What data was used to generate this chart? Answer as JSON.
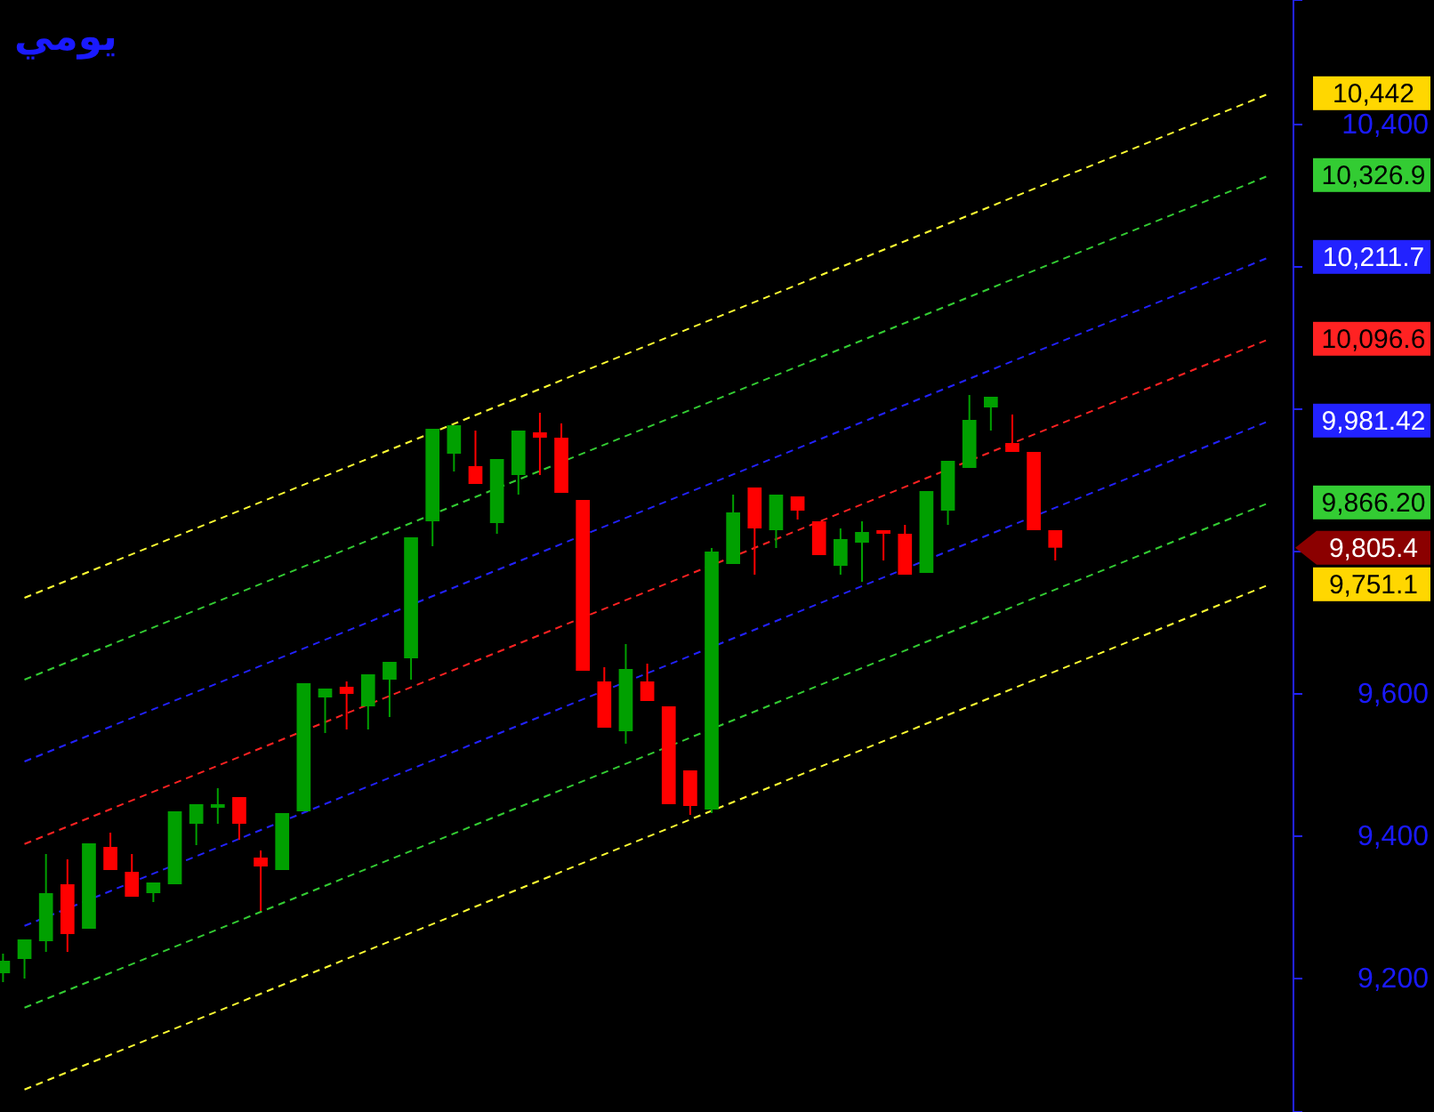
{
  "chart_data": {
    "type": "candlestick",
    "title": "يومي",
    "categories": [
      null,
      null,
      null,
      null,
      null,
      null,
      null,
      null,
      null,
      null,
      null,
      null,
      null,
      null,
      null,
      null,
      null,
      null,
      null,
      null,
      null,
      null,
      null,
      null,
      null,
      null,
      null,
      null,
      null,
      null,
      null,
      null,
      null,
      null,
      null,
      null,
      null,
      null,
      null,
      null,
      null,
      null,
      null,
      null,
      null,
      null,
      null,
      null,
      null,
      null,
      null,
      null,
      null,
      null,
      null,
      null,
      null,
      null,
      null,
      null
    ],
    "ohlc": [
      [
        9207.5,
        9235,
        9195,
        9225
      ],
      [
        9227.5,
        9255,
        9200,
        9255
      ],
      [
        9252.5,
        9375,
        9237.5,
        9320
      ],
      [
        9332.5,
        9367.5,
        9237.5,
        9262.5
      ],
      [
        9270,
        9390,
        9270,
        9390
      ],
      [
        9385,
        9405,
        9352.5,
        9352.5
      ],
      [
        9350,
        9375,
        9315,
        9315
      ],
      [
        9320,
        9335,
        9307.5,
        9335
      ],
      [
        9332.5,
        9435,
        9332.5,
        9435
      ],
      [
        9417.5,
        9445,
        9387.5,
        9445
      ],
      [
        9440,
        9467.5,
        9417.5,
        9445
      ],
      [
        9455,
        9455,
        9395,
        9417.5
      ],
      [
        9370,
        9380,
        9295,
        9357.5
      ],
      [
        9352.5,
        9432.5,
        9352.5,
        9432.5
      ],
      [
        9435,
        9615,
        9435,
        9615
      ],
      [
        9595,
        9607.5,
        9545,
        9607.5
      ],
      [
        9610,
        9617.5,
        9550,
        9600
      ],
      [
        9582.5,
        9627.5,
        9550,
        9627.5
      ],
      [
        9620,
        9645,
        9567.5,
        9645
      ],
      [
        9650,
        9820,
        9620,
        9820
      ],
      [
        9842.5,
        9972.5,
        9807.5,
        9972.5
      ],
      [
        9937.5,
        9977.5,
        9912.5,
        9977.5
      ],
      [
        9920,
        9970,
        9895,
        9895
      ],
      [
        9840,
        9930,
        9825,
        9930
      ],
      [
        9907.5,
        9970,
        9880,
        9970
      ],
      [
        9967.5,
        9995,
        9907.5,
        9960
      ],
      [
        9960,
        9980,
        9882.5,
        9882.5
      ],
      [
        9872.5,
        9872.5,
        9632.5,
        9632.5
      ],
      [
        9617.5,
        9637.5,
        9552.5,
        9552.5
      ],
      [
        9547.5,
        9670,
        9530,
        9635
      ],
      [
        9617.5,
        9642.5,
        9590,
        9590
      ],
      [
        9582.5,
        9582.5,
        9445,
        9445
      ],
      [
        9492.5,
        9492.5,
        9430,
        9442.5
      ],
      [
        9437.5,
        9805,
        9432.5,
        9800
      ],
      [
        9782.5,
        9880,
        9782.5,
        9855
      ],
      [
        9890,
        9890,
        9767.5,
        9832.5
      ],
      [
        9830,
        9880,
        9805,
        9880
      ],
      [
        9877.5,
        9877.5,
        9845,
        9857.5
      ],
      [
        9842.5,
        9842.5,
        9795,
        9795
      ],
      [
        9780,
        9832.5,
        9767.5,
        9817.5
      ],
      [
        9812.5,
        9842.5,
        9757.5,
        9827.5
      ],
      [
        9830,
        9830,
        9787.5,
        9825
      ],
      [
        9825,
        9837.5,
        9767.5,
        9767.5
      ],
      [
        9770,
        9885,
        9770,
        9885
      ],
      [
        9857.5,
        9927.5,
        9837.5,
        9927.5
      ],
      [
        9917.5,
        10020,
        9917.5,
        9985
      ],
      [
        10002.5,
        10017.5,
        9970,
        10017.5
      ],
      [
        9952.5,
        9992.5,
        9940,
        9940
      ],
      [
        9940,
        9940,
        9830,
        9830
      ],
      [
        9830,
        9830,
        9787.5,
        9805.4
      ],
      null,
      null,
      null,
      null,
      null,
      null,
      null,
      null,
      null,
      null
    ],
    "colors": [
      "#00a000",
      "#00a000",
      "#00a000",
      "#ff0000",
      "#00a000",
      "#ff0000",
      "#ff0000",
      "#00a000",
      "#00a000",
      "#00a000",
      "#00a000",
      "#ff0000",
      "#ff0000",
      "#00a000",
      "#00a000",
      "#00a000",
      "#ff0000",
      "#00a000",
      "#00a000",
      "#00a000",
      "#00a000",
      "#00a000",
      "#ff0000",
      "#00a000",
      "#00a000",
      "#ff0000",
      "#ff0000",
      "#ff0000",
      "#ff0000",
      "#00a000",
      "#ff0000",
      "#ff0000",
      "#ff0000",
      "#00a000",
      "#00a000",
      "#ff0000",
      "#00a000",
      "#ff0000",
      "#ff0000",
      "#00a000",
      "#00a000",
      "#ff0000",
      "#ff0000",
      "#00a000",
      "#00a000",
      "#00a000",
      "#00a000",
      "#ff0000",
      "#ff0000",
      "#ff0000",
      null,
      null,
      null,
      null,
      null,
      null,
      null,
      null,
      null,
      null
    ],
    "series": [
      {
        "type": "line",
        "values": [
          null,
          9735,
          null,
          null,
          null,
          null,
          null,
          null,
          null,
          null,
          null,
          null,
          null,
          null,
          null,
          null,
          null,
          null,
          null,
          null,
          null,
          null,
          null,
          null,
          null,
          null,
          null,
          null,
          null,
          null,
          null,
          null,
          null,
          null,
          null,
          null,
          null,
          null,
          null,
          null,
          null,
          null,
          null,
          null,
          null,
          null,
          null,
          null,
          null,
          null,
          null,
          null,
          null,
          null,
          null,
          null,
          null,
          null,
          null,
          10444
        ],
        "color": "#ffff33"
      },
      {
        "type": "line",
        "values": [
          null,
          9620,
          null,
          null,
          null,
          null,
          null,
          null,
          null,
          null,
          null,
          null,
          null,
          null,
          null,
          null,
          null,
          null,
          null,
          null,
          null,
          null,
          null,
          null,
          null,
          null,
          null,
          null,
          null,
          null,
          null,
          null,
          null,
          null,
          null,
          null,
          null,
          null,
          null,
          null,
          null,
          null,
          null,
          null,
          null,
          null,
          null,
          null,
          null,
          null,
          null,
          null,
          null,
          null,
          null,
          null,
          null,
          null,
          null,
          10329
        ],
        "color": "#33cc33"
      },
      {
        "type": "line",
        "values": [
          null,
          9505,
          null,
          null,
          null,
          null,
          null,
          null,
          null,
          null,
          null,
          null,
          null,
          null,
          null,
          null,
          null,
          null,
          null,
          null,
          null,
          null,
          null,
          null,
          null,
          null,
          null,
          null,
          null,
          null,
          null,
          null,
          null,
          null,
          null,
          null,
          null,
          null,
          null,
          null,
          null,
          null,
          null,
          null,
          null,
          null,
          null,
          null,
          null,
          null,
          null,
          null,
          null,
          null,
          null,
          null,
          null,
          null,
          null,
          10214
        ],
        "color": "#2222ff"
      },
      {
        "type": "line",
        "values": [
          null,
          9389,
          null,
          null,
          null,
          null,
          null,
          null,
          null,
          null,
          null,
          null,
          null,
          null,
          null,
          null,
          null,
          null,
          null,
          null,
          null,
          null,
          null,
          null,
          null,
          null,
          null,
          null,
          null,
          null,
          null,
          null,
          null,
          null,
          null,
          null,
          null,
          null,
          null,
          null,
          null,
          null,
          null,
          null,
          null,
          null,
          null,
          null,
          null,
          null,
          null,
          null,
          null,
          null,
          null,
          null,
          null,
          null,
          null,
          10099
        ],
        "color": "#ff2222"
      },
      {
        "type": "line",
        "values": [
          null,
          9274,
          null,
          null,
          null,
          null,
          null,
          null,
          null,
          null,
          null,
          null,
          null,
          null,
          null,
          null,
          null,
          null,
          null,
          null,
          null,
          null,
          null,
          null,
          null,
          null,
          null,
          null,
          null,
          null,
          null,
          null,
          null,
          null,
          null,
          null,
          null,
          null,
          null,
          null,
          null,
          null,
          null,
          null,
          null,
          null,
          null,
          null,
          null,
          null,
          null,
          null,
          null,
          null,
          null,
          null,
          null,
          null,
          null,
          9984
        ],
        "color": "#2222ff"
      },
      {
        "type": "line",
        "values": [
          null,
          9159,
          null,
          null,
          null,
          null,
          null,
          null,
          null,
          null,
          null,
          null,
          null,
          null,
          null,
          null,
          null,
          null,
          null,
          null,
          null,
          null,
          null,
          null,
          null,
          null,
          null,
          null,
          null,
          null,
          null,
          null,
          null,
          null,
          null,
          null,
          null,
          null,
          null,
          null,
          null,
          null,
          null,
          null,
          null,
          null,
          null,
          null,
          null,
          null,
          null,
          null,
          null,
          null,
          null,
          null,
          null,
          null,
          null,
          9869
        ],
        "color": "#33cc33"
      },
      {
        "type": "line",
        "values": [
          null,
          9044,
          null,
          null,
          null,
          null,
          null,
          null,
          null,
          null,
          null,
          null,
          null,
          null,
          null,
          null,
          null,
          null,
          null,
          null,
          null,
          null,
          null,
          null,
          null,
          null,
          null,
          null,
          null,
          null,
          null,
          null,
          null,
          null,
          null,
          null,
          null,
          null,
          null,
          null,
          null,
          null,
          null,
          null,
          null,
          null,
          null,
          null,
          null,
          null,
          null,
          null,
          null,
          null,
          null,
          null,
          null,
          null,
          null,
          9754
        ],
        "color": "#ffff33"
      }
    ],
    "line_style": "dashed",
    "annotations": [
      "10,442",
      "10,326.9",
      "10,211.7",
      "10,096.6",
      "9,981.42",
      "9,866.20",
      "9,805.4",
      "9,751.1"
    ],
    "ylim": [
      9012.5,
      10575
    ],
    "yticks": [
      {
        "value": 9200,
        "label": "9,200"
      },
      {
        "value": 9400,
        "label": "9,400"
      },
      {
        "value": 9600,
        "label": "9,600"
      },
      {
        "value": 9800,
        "label": null
      },
      {
        "value": 10000,
        "label": null
      },
      {
        "value": 10200,
        "label": null
      },
      {
        "value": 10400,
        "label": "10,400"
      }
    ],
    "tick_labels": "y"
  }
}
